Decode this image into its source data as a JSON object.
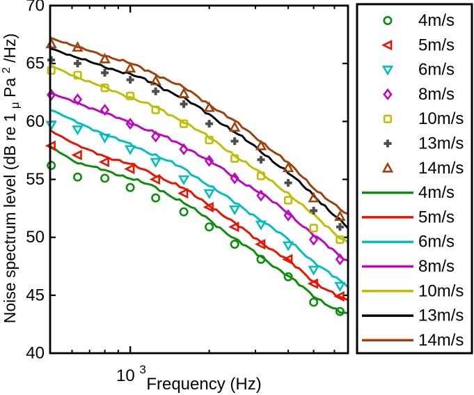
{
  "chart_data": {
    "type": "line+scatter",
    "title": "",
    "xlabel": "Frequency (Hz)",
    "ylabel": "Noise spectrum level (dB re 1μPa²/Hz)",
    "ylabel_parts": {
      "pre": "Noise spectrum level (dB re 1",
      "mu": "μ",
      "mid": "Pa",
      "sup": "2",
      "post": "/Hz)"
    },
    "x_scale": "log",
    "xlim": [
      495,
      6760
    ],
    "ylim": [
      40,
      70
    ],
    "y_ticks": [
      40,
      45,
      50,
      55,
      60,
      65,
      70
    ],
    "x_major_ticks": [
      1000
    ],
    "x_major_tick_label_parts": {
      "base": "10",
      "sup": "3"
    },
    "x_minor_ticks": [
      600,
      700,
      800,
      900,
      2000,
      3000,
      4000,
      5000,
      6000
    ],
    "grid": "off",
    "legend_position": "outside-right",
    "frequencies_hz": [
      500,
      630,
      800,
      1000,
      1250,
      1600,
      2000,
      2500,
      3150,
      4000,
      5000,
      6300
    ],
    "marker_series": [
      {
        "label": "4m/s",
        "marker": "circle",
        "color": "#0a8f0a",
        "values": [
          56.2,
          55.2,
          55.1,
          54.3,
          53.4,
          52.2,
          50.9,
          49.4,
          48.1,
          46.6,
          44.4,
          43.6
        ]
      },
      {
        "label": "5m/s",
        "marker": "triangle-left",
        "color": "#ee1100",
        "values": [
          57.9,
          57.1,
          56.5,
          55.9,
          55.0,
          53.8,
          52.6,
          50.9,
          49.4,
          48.1,
          46.0,
          44.9
        ]
      },
      {
        "label": "6m/s",
        "marker": "triangle-down",
        "color": "#00bfbf",
        "values": [
          59.7,
          59.3,
          58.6,
          57.6,
          56.5,
          55.0,
          53.8,
          52.4,
          51.1,
          49.3,
          47.2,
          45.8
        ]
      },
      {
        "label": "8m/s",
        "marker": "diamond",
        "color": "#c303c3",
        "values": [
          62.3,
          61.9,
          61.0,
          59.8,
          58.7,
          57.6,
          56.6,
          55.1,
          53.6,
          51.9,
          49.8,
          48.1
        ]
      },
      {
        "label": "10m/s",
        "marker": "square",
        "color": "#bfbf00",
        "values": [
          64.4,
          64.0,
          62.9,
          62.2,
          61.0,
          59.8,
          58.4,
          56.8,
          55.3,
          53.2,
          50.8,
          49.8
        ]
      },
      {
        "label": "13m/s",
        "marker": "plus",
        "color": "#4d4d4d",
        "values": [
          65.3,
          65.0,
          64.2,
          63.6,
          62.6,
          61.5,
          59.8,
          58.3,
          56.7,
          54.7,
          52.3,
          50.9
        ]
      },
      {
        "label": "14m/s",
        "marker": "triangle-up",
        "color": "#a0410d",
        "values": [
          66.7,
          66.4,
          65.4,
          64.6,
          63.5,
          62.4,
          61.2,
          59.5,
          57.9,
          56.0,
          53.4,
          51.8
        ]
      }
    ],
    "line_x_hz": [
      495,
      500,
      630,
      800,
      1000,
      1250,
      1600,
      2000,
      2500,
      3150,
      4000,
      5000,
      6300,
      6760
    ],
    "line_series": [
      {
        "label": "4m/s",
        "color": "#0a8f0a",
        "values": [
          57.9,
          57.8,
          56.4,
          55.8,
          55.1,
          54.3,
          53.0,
          51.5,
          49.9,
          48.3,
          46.7,
          44.9,
          43.6,
          43.4
        ]
      },
      {
        "label": "5m/s",
        "color": "#ee1100",
        "values": [
          59.3,
          59.2,
          57.9,
          57.0,
          56.3,
          55.4,
          54.2,
          52.8,
          51.2,
          49.6,
          48.0,
          46.2,
          44.8,
          44.5
        ]
      },
      {
        "label": "6m/s",
        "color": "#00bfbf",
        "values": [
          61.1,
          61.0,
          59.9,
          58.9,
          58.0,
          57.1,
          55.9,
          54.5,
          53.0,
          51.5,
          49.8,
          47.9,
          46.2,
          45.8
        ]
      },
      {
        "label": "8m/s",
        "color": "#c303c3",
        "values": [
          62.5,
          62.4,
          61.6,
          60.7,
          59.9,
          59.0,
          57.9,
          56.6,
          55.2,
          53.8,
          52.1,
          50.2,
          48.4,
          48.0
        ]
      },
      {
        "label": "10m/s",
        "color": "#bfbf00",
        "values": [
          64.9,
          64.8,
          63.8,
          62.9,
          62.1,
          61.2,
          60.0,
          58.6,
          57.1,
          55.5,
          53.8,
          51.9,
          50.0,
          49.6
        ]
      },
      {
        "label": "13m/s",
        "color": "#000000",
        "values": [
          66.4,
          66.3,
          65.5,
          64.7,
          64.1,
          63.2,
          62.0,
          60.6,
          59.1,
          57.4,
          55.6,
          53.6,
          51.5,
          50.8
        ]
      },
      {
        "label": "14m/s",
        "color": "#a0410d",
        "values": [
          67.3,
          67.2,
          66.4,
          65.7,
          65.0,
          64.1,
          62.9,
          61.5,
          60.0,
          58.3,
          56.4,
          54.3,
          52.4,
          51.9
        ]
      }
    ],
    "axis_color": "#000000",
    "background_color": "#ffffff"
  }
}
